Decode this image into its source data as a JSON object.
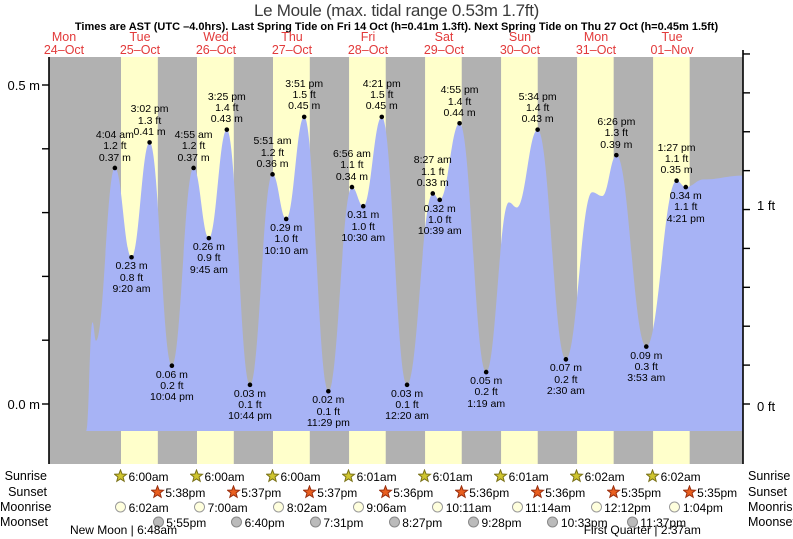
{
  "chart_data": {
    "type": "area",
    "title": "Le Moule (max. tidal range 0.53m 1.7ft)",
    "subtitle": "Times are AST (UTC –4.0hrs). Last Spring Tide on Fri 14 Oct (h=0.41m 1.3ft). Next Spring Tide on Thu 27 Oct (h=0.45m 1.5ft)",
    "y_axis": {
      "left_top_label": "0.5 m",
      "left_bottom_label": "0.0 m",
      "right_top_label": "1 ft",
      "right_bottom_label": "0 ft",
      "left_unit": "m",
      "right_unit": "ft",
      "left_range_m": [
        0.0,
        0.5
      ]
    },
    "days": [
      {
        "weekday": "Mon",
        "date": "24–Oct"
      },
      {
        "weekday": "Tue",
        "date": "25–Oct"
      },
      {
        "weekday": "Wed",
        "date": "26–Oct"
      },
      {
        "weekday": "Thu",
        "date": "27–Oct"
      },
      {
        "weekday": "Fri",
        "date": "28–Oct"
      },
      {
        "weekday": "Sat",
        "date": "29–Oct"
      },
      {
        "weekday": "Sun",
        "date": "30–Oct"
      },
      {
        "weekday": "Mon",
        "date": "31–Oct"
      },
      {
        "weekday": "Tue",
        "date": "01–Nov"
      }
    ],
    "tide_events": [
      {
        "t": 28.07,
        "m": 0.37,
        "type": "high",
        "lines": [
          "4:04 am",
          "1.2 ft",
          "0.37 m"
        ]
      },
      {
        "t": 33.33,
        "m": 0.23,
        "type": "low",
        "lines": [
          "0.23 m",
          "0.8 ft",
          "9:20 am"
        ]
      },
      {
        "t": 39.03,
        "m": 0.41,
        "type": "high",
        "lines": [
          "3:02 pm",
          "1.3 ft",
          "0.41 m"
        ]
      },
      {
        "t": 46.07,
        "m": 0.06,
        "type": "low",
        "lines": [
          "0.06 m",
          "0.2 ft",
          "10:04 pm"
        ]
      },
      {
        "t": 52.92,
        "m": 0.37,
        "type": "high",
        "lines": [
          "4:55 am",
          "1.2 ft",
          "0.37 m"
        ]
      },
      {
        "t": 57.75,
        "m": 0.26,
        "type": "low",
        "lines": [
          "0.26 m",
          "0.9 ft",
          "9:45 am"
        ]
      },
      {
        "t": 63.42,
        "m": 0.43,
        "type": "high",
        "lines": [
          "3:25 pm",
          "1.4 ft",
          "0.43 m"
        ]
      },
      {
        "t": 70.73,
        "m": 0.03,
        "type": "low",
        "lines": [
          "0.03 m",
          "0.1 ft",
          "10:44 pm"
        ]
      },
      {
        "t": 77.85,
        "m": 0.36,
        "type": "high",
        "lines": [
          "5:51 am",
          "1.2 ft",
          "0.36 m"
        ]
      },
      {
        "t": 82.17,
        "m": 0.29,
        "type": "low",
        "lines": [
          "0.29 m",
          "1.0 ft",
          "10:10 am"
        ]
      },
      {
        "t": 87.85,
        "m": 0.45,
        "type": "high",
        "lines": [
          "3:51 pm",
          "1.5 ft",
          "0.45 m"
        ]
      },
      {
        "t": 95.48,
        "m": 0.02,
        "type": "low",
        "lines": [
          "0.02 m",
          "0.1 ft",
          "11:29 pm"
        ]
      },
      {
        "t": 102.93,
        "m": 0.34,
        "type": "high",
        "lines": [
          "6:56 am",
          "1.1 ft",
          "0.34 m"
        ]
      },
      {
        "t": 106.5,
        "m": 0.31,
        "type": "low",
        "lines": [
          "0.31 m",
          "1.0 ft",
          "10:30 am"
        ]
      },
      {
        "t": 112.35,
        "m": 0.45,
        "type": "high",
        "lines": [
          "4:21 pm",
          "1.5 ft",
          "0.45 m"
        ]
      },
      {
        "t": 120.33,
        "m": 0.03,
        "type": "low",
        "lines": [
          "0.03 m",
          "0.1 ft",
          "12:20 am"
        ]
      },
      {
        "t": 128.45,
        "m": 0.33,
        "type": "high",
        "lines": [
          "8:27 am",
          "1.1 ft",
          "0.33 m"
        ]
      },
      {
        "t": 130.65,
        "m": 0.32,
        "type": "low",
        "lines": [
          "0.32 m",
          "1.0 ft",
          "10:39 am"
        ]
      },
      {
        "t": 136.92,
        "m": 0.44,
        "type": "high",
        "lines": [
          "4:55 pm",
          "1.4 ft",
          "0.44 m"
        ]
      },
      {
        "t": 145.32,
        "m": 0.05,
        "type": "low",
        "lines": [
          "0.05 m",
          "0.2 ft",
          "1:19 am"
        ]
      },
      {
        "t": 161.57,
        "m": 0.43,
        "type": "high",
        "lines": [
          "5:34 pm",
          "1.4 ft",
          "0.43 m"
        ]
      },
      {
        "t": 170.5,
        "m": 0.07,
        "type": "low",
        "lines": [
          "0.07 m",
          "0.2 ft",
          "2:30 am"
        ]
      },
      {
        "t": 186.43,
        "m": 0.39,
        "type": "high",
        "lines": [
          "6:26 pm",
          "1.3 ft",
          "0.39 m"
        ]
      },
      {
        "t": 195.88,
        "m": 0.09,
        "type": "low",
        "lines": [
          "0.09 m",
          "0.3 ft",
          "3:53 am"
        ]
      },
      {
        "t": 205.45,
        "m": 0.35,
        "type": "high",
        "lines": [
          "1:27 pm",
          "1.1 ft",
          "0.35 m"
        ]
      },
      {
        "t": 208.35,
        "m": 0.34,
        "type": "low",
        "lines": [
          "0.34 m",
          "1.1 ft",
          "4:21 pm"
        ]
      }
    ],
    "curve_shape_points": [
      {
        "t": 19.0,
        "m": -0.042
      },
      {
        "t": 21.0,
        "m": 0.128
      },
      {
        "t": 22.1,
        "m": 0.099
      },
      {
        "t": 152.5,
        "m": 0.316
      },
      {
        "t": 155.0,
        "m": 0.308
      },
      {
        "t": 178.8,
        "m": 0.332
      },
      {
        "t": 182.0,
        "m": 0.326
      },
      {
        "t": 214.0,
        "m": 0.352
      },
      {
        "t": 226.4,
        "m": 0.358
      }
    ],
    "sun_moon_labels": [
      "Sunrise",
      "Sunset",
      "Moonrise",
      "Moonset"
    ],
    "sun_moon": {
      "sunrise": [
        {
          "t": 30.0,
          "label": "6:00am"
        },
        {
          "t": 54.0,
          "label": "6:00am"
        },
        {
          "t": 78.0,
          "label": "6:00am"
        },
        {
          "t": 102.02,
          "label": "6:01am"
        },
        {
          "t": 126.02,
          "label": "6:01am"
        },
        {
          "t": 150.02,
          "label": "6:01am"
        },
        {
          "t": 174.03,
          "label": "6:02am"
        },
        {
          "t": 198.03,
          "label": "6:02am"
        }
      ],
      "sunset": [
        {
          "t": 41.63,
          "label": "5:38pm"
        },
        {
          "t": 65.62,
          "label": "5:37pm"
        },
        {
          "t": 89.62,
          "label": "5:37pm"
        },
        {
          "t": 113.6,
          "label": "5:36pm"
        },
        {
          "t": 137.6,
          "label": "5:36pm"
        },
        {
          "t": 161.6,
          "label": "5:36pm"
        },
        {
          "t": 185.58,
          "label": "5:35pm"
        },
        {
          "t": 209.58,
          "label": "5:35pm"
        }
      ],
      "moonrise": [
        {
          "t": 30.03,
          "label": "6:02am"
        },
        {
          "t": 55.0,
          "label": "7:00am"
        },
        {
          "t": 80.03,
          "label": "8:02am"
        },
        {
          "t": 105.1,
          "label": "9:06am"
        },
        {
          "t": 130.18,
          "label": "10:11am"
        },
        {
          "t": 155.23,
          "label": "11:14am"
        },
        {
          "t": 180.2,
          "label": "12:12pm"
        },
        {
          "t": 205.07,
          "label": "1:04pm"
        }
      ],
      "moonset": [
        {
          "t": 41.92,
          "label": "5:55pm"
        },
        {
          "t": 66.67,
          "label": "6:40pm"
        },
        {
          "t": 91.52,
          "label": "7:31pm"
        },
        {
          "t": 116.45,
          "label": "8:27pm"
        },
        {
          "t": 141.47,
          "label": "9:28pm"
        },
        {
          "t": 166.55,
          "label": "10:33pm"
        },
        {
          "t": 191.62,
          "label": "11:37pm"
        }
      ]
    },
    "moon_phases": [
      {
        "t": 30.8,
        "label": "New Moon | 6:48am"
      },
      {
        "t": 194.62,
        "label": "First Quarter | 2:37am"
      }
    ],
    "colors": {
      "night_band": "#b1b1b1",
      "day_band": "#ffffcb",
      "water": "#a7b3f5",
      "day_label_red": "#e23a3a",
      "sunrise_star_fill": "#cfc52f",
      "sunrise_star_stroke": "#7a7218",
      "sunset_star_fill": "#e95f1f",
      "sunset_star_stroke": "#992e0e",
      "moonrise_circle_fill": "#ffffdd",
      "moonrise_circle_stroke": "#999999",
      "moonset_circle_fill": "#bbbbbb",
      "moonset_circle_stroke": "#888888"
    }
  }
}
